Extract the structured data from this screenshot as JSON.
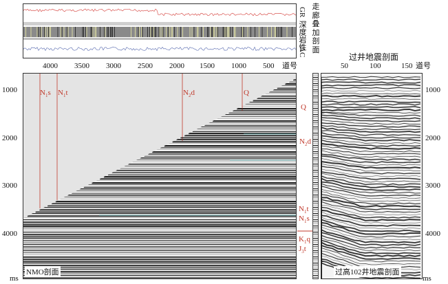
{
  "well_log": {
    "curves_label_right": [
      "GR",
      "深度岩性",
      "AC"
    ],
    "curve_colors": {
      "gr": "#d9534f",
      "ac": "#6b7bb8",
      "lithology": "#444444"
    }
  },
  "corridor_label": [
    "走",
    "廊",
    "叠",
    "加",
    "剖",
    "面"
  ],
  "nmo_panel": {
    "x_axis_ticks": [
      "4000",
      "3500",
      "3000",
      "2500",
      "2000",
      "1500",
      "1000",
      "500"
    ],
    "x_axis_name": "道号",
    "y_axis_ticks": [
      "1000",
      "2000",
      "3000",
      "4000"
    ],
    "y_unit": "ms",
    "caption": "NMO剖面",
    "horizons_top": [
      {
        "label_main": "N",
        "label_sub": "1",
        "label_tail": "s"
      },
      {
        "label_main": "N",
        "label_sub": "1",
        "label_tail": "t"
      },
      {
        "label_main": "N",
        "label_sub": "2",
        "label_tail": "d"
      },
      {
        "label_main": "Q",
        "label_sub": "",
        "label_tail": ""
      }
    ]
  },
  "corridor_horizons": [
    {
      "label_main": "Q",
      "label_sub": "",
      "label_tail": ""
    },
    {
      "label_main": "N",
      "label_sub": "2",
      "label_tail": "d"
    },
    {
      "label_main": "N",
      "label_sub": "1",
      "label_tail": "t"
    },
    {
      "label_main": "N",
      "label_sub": "1",
      "label_tail": "s"
    },
    {
      "label_main": "K",
      "label_sub": "1",
      "label_tail": "q"
    },
    {
      "label_main": "J",
      "label_sub": "3",
      "label_tail": "t"
    }
  ],
  "well_seismic_panel": {
    "title": "过井地震剖面",
    "x_axis_ticks": [
      "50",
      "100",
      "150"
    ],
    "x_axis_name": "道号",
    "y_axis_ticks": [
      "1000",
      "2000",
      "3000",
      "4000"
    ],
    "y_unit": "ms",
    "caption": "过高102井地震剖面"
  }
}
